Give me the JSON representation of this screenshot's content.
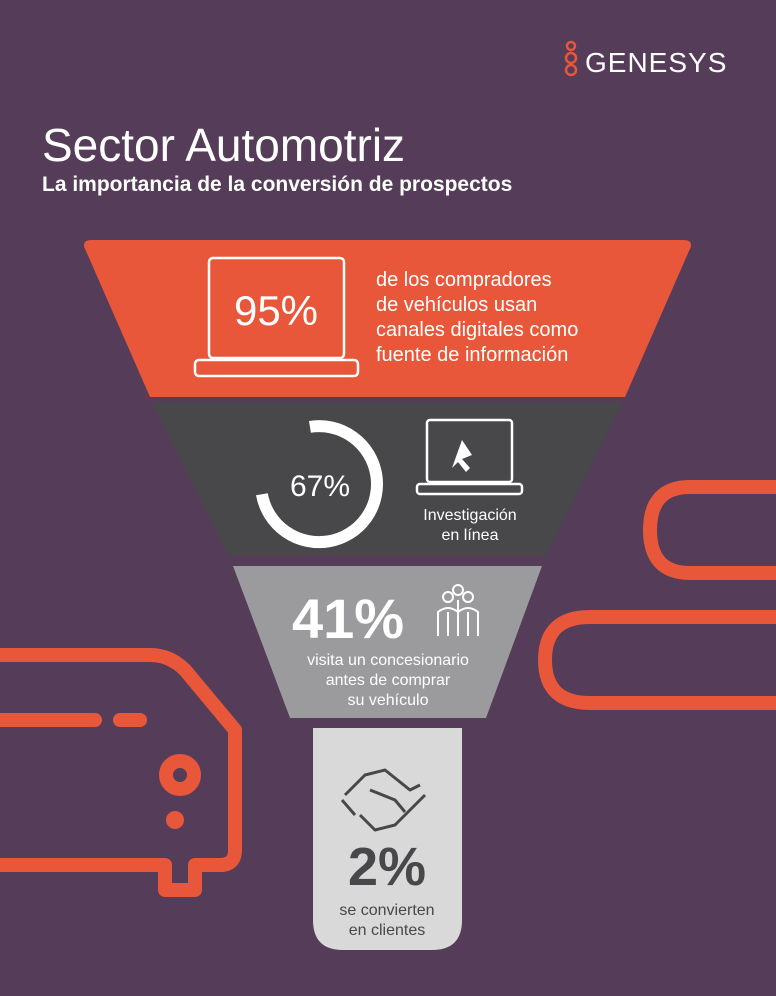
{
  "header": {
    "brand": "GENESYS",
    "title": "Sector Automotriz",
    "subtitle": "La importancia de la conversión de prospectos"
  },
  "stages": [
    {
      "stat": "95%",
      "lines": [
        "de los compradores",
        "de vehículos usan",
        "canales digitales como",
        "fuente de información"
      ]
    },
    {
      "stat": "67%",
      "lines": [
        "Investigación",
        "en línea"
      ]
    },
    {
      "stat": "41%",
      "lines": [
        "visita un concesionario",
        "antes de comprar",
        "su vehículo"
      ]
    },
    {
      "stat": "2%",
      "lines": [
        "se convierten",
        "en clientes"
      ]
    }
  ]
}
